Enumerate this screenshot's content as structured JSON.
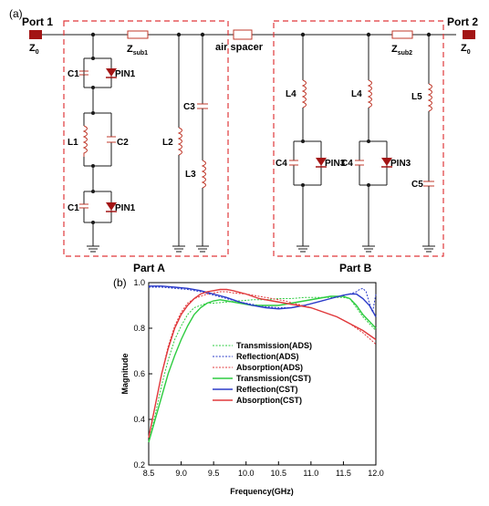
{
  "circuit": {
    "panel_label": "(a)",
    "port1_label": "Port 1",
    "port2_label": "Port 2",
    "z0_main": "Z",
    "z0_sub": "0",
    "zsub1_main": "Z",
    "zsub1_sub": "sub1",
    "zsub2_main": "Z",
    "zsub2_sub": "sub2",
    "air_spacer": "air spacer",
    "part_a": "Part A",
    "part_b": "Part B",
    "labels": {
      "c1": "C1",
      "pin1": "PIN1",
      "l1": "L1",
      "c2": "C2",
      "l2": "L2",
      "c3": "C3",
      "l3": "L3",
      "l4": "L4",
      "c4": "C4",
      "pin3": "PIN3",
      "l5": "L5",
      "c5": "C5"
    },
    "colors": {
      "wire": "#1a1a1a",
      "port": "#a31515",
      "diode": "#a31515",
      "dashed_box": "#e0383b",
      "component": "#c0392b"
    }
  },
  "chart_data": {
    "panel_label": "(b)",
    "type": "line",
    "xlabel": "Frequency(GHz)",
    "ylabel": "Magnitude",
    "xlim": [
      8.5,
      12.0
    ],
    "ylim": [
      0.2,
      1.0
    ],
    "xticks": [
      "8.5",
      "9.0",
      "9.5",
      "10.0",
      "10.5",
      "11.0",
      "11.5",
      "12.0"
    ],
    "yticks": [
      "0.2",
      "0.4",
      "0.6",
      "0.8",
      "1.0"
    ],
    "grid": false,
    "legend_position": "center-left",
    "series": [
      {
        "name": "Transmission(ADS)",
        "color": "#2ecc40",
        "dash": true,
        "x": [
          8.5,
          8.6,
          8.7,
          8.8,
          8.9,
          9.0,
          9.1,
          9.2,
          9.3,
          9.4,
          9.5,
          9.7,
          9.9,
          10.1,
          10.3,
          10.5,
          10.7,
          10.9,
          11.1,
          11.3,
          11.5,
          11.6,
          11.7,
          11.8,
          11.9,
          12.0
        ],
        "y": [
          0.3,
          0.42,
          0.55,
          0.66,
          0.75,
          0.81,
          0.86,
          0.89,
          0.9,
          0.91,
          0.91,
          0.915,
          0.92,
          0.925,
          0.925,
          0.93,
          0.93,
          0.935,
          0.935,
          0.935,
          0.935,
          0.93,
          0.89,
          0.85,
          0.82,
          0.79
        ]
      },
      {
        "name": "Reflection(ADS)",
        "color": "#2c3cc9",
        "dash": true,
        "x": [
          8.5,
          8.7,
          8.9,
          9.1,
          9.3,
          9.5,
          9.7,
          9.9,
          10.1,
          10.3,
          10.5,
          10.7,
          10.9,
          11.1,
          11.3,
          11.5,
          11.6,
          11.7,
          11.75,
          11.8,
          11.85,
          11.9,
          11.95,
          12.0
        ],
        "y": [
          0.98,
          0.98,
          0.975,
          0.97,
          0.96,
          0.945,
          0.93,
          0.915,
          0.905,
          0.895,
          0.89,
          0.89,
          0.9,
          0.915,
          0.93,
          0.945,
          0.95,
          0.96,
          0.97,
          0.975,
          0.96,
          0.91,
          0.87,
          0.95
        ]
      },
      {
        "name": "Absorption(ADS)",
        "color": "#e0383b",
        "dash": true,
        "x": [
          8.5,
          8.6,
          8.7,
          8.8,
          8.9,
          9.0,
          9.1,
          9.2,
          9.3,
          9.4,
          9.5,
          9.6,
          9.7,
          9.8,
          10.0,
          10.2,
          10.4,
          10.6,
          10.8,
          11.0,
          11.2,
          11.4,
          11.6,
          11.8,
          12.0
        ],
        "y": [
          0.32,
          0.46,
          0.6,
          0.72,
          0.81,
          0.87,
          0.91,
          0.93,
          0.94,
          0.95,
          0.955,
          0.96,
          0.96,
          0.955,
          0.95,
          0.94,
          0.93,
          0.92,
          0.905,
          0.89,
          0.87,
          0.85,
          0.82,
          0.78,
          0.73
        ]
      },
      {
        "name": "Transmission(CST)",
        "color": "#2ecc40",
        "dash": false,
        "x": [
          8.5,
          8.6,
          8.7,
          8.8,
          8.9,
          9.0,
          9.1,
          9.2,
          9.3,
          9.4,
          9.5,
          9.6,
          9.7,
          9.9,
          10.1,
          10.3,
          10.5,
          10.7,
          10.9,
          11.1,
          11.3,
          11.5,
          11.6,
          11.7,
          11.8,
          11.9,
          12.0
        ],
        "y": [
          0.3,
          0.4,
          0.5,
          0.6,
          0.68,
          0.75,
          0.81,
          0.86,
          0.89,
          0.91,
          0.92,
          0.925,
          0.92,
          0.91,
          0.9,
          0.9,
          0.9,
          0.91,
          0.92,
          0.93,
          0.94,
          0.94,
          0.93,
          0.9,
          0.86,
          0.83,
          0.8
        ]
      },
      {
        "name": "Reflection(CST)",
        "color": "#2c3cc9",
        "dash": false,
        "x": [
          8.5,
          8.7,
          8.9,
          9.1,
          9.3,
          9.5,
          9.7,
          9.9,
          10.1,
          10.3,
          10.5,
          10.7,
          10.9,
          11.1,
          11.3,
          11.5,
          11.6,
          11.7,
          11.8,
          11.9,
          12.0
        ],
        "y": [
          0.985,
          0.985,
          0.98,
          0.975,
          0.965,
          0.95,
          0.935,
          0.915,
          0.9,
          0.89,
          0.885,
          0.89,
          0.9,
          0.915,
          0.93,
          0.945,
          0.95,
          0.95,
          0.93,
          0.9,
          0.85
        ]
      },
      {
        "name": "Absorption(CST)",
        "color": "#e0383b",
        "dash": false,
        "x": [
          8.5,
          8.6,
          8.7,
          8.8,
          8.9,
          9.0,
          9.1,
          9.2,
          9.3,
          9.4,
          9.5,
          9.6,
          9.7,
          9.8,
          10.0,
          10.2,
          10.4,
          10.6,
          10.8,
          11.0,
          11.2,
          11.4,
          11.6,
          11.8,
          12.0
        ],
        "y": [
          0.32,
          0.46,
          0.6,
          0.71,
          0.8,
          0.86,
          0.9,
          0.93,
          0.95,
          0.96,
          0.965,
          0.97,
          0.97,
          0.965,
          0.95,
          0.93,
          0.92,
          0.91,
          0.9,
          0.89,
          0.87,
          0.85,
          0.82,
          0.79,
          0.75
        ]
      }
    ]
  }
}
